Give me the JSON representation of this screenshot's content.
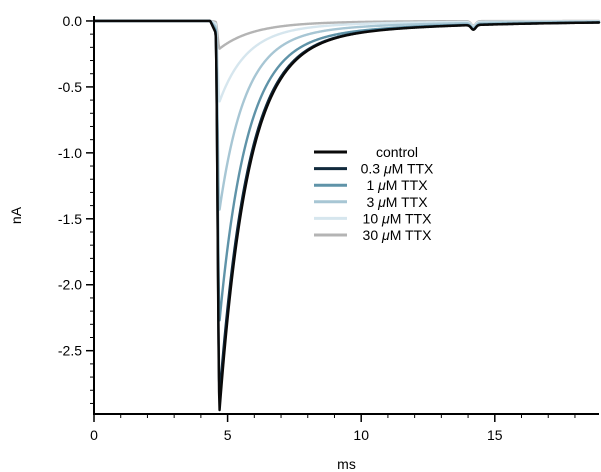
{
  "chart_data": {
    "type": "line",
    "xlabel": "ms",
    "ylabel": "nA",
    "xlim": [
      0,
      18.9
    ],
    "ylim": [
      -2.98,
      0.03
    ],
    "xticks": [
      0,
      5,
      10,
      15
    ],
    "xtick_labels": [
      "0",
      "5",
      "10",
      "15"
    ],
    "yticks": [
      0.0,
      -0.5,
      -1.0,
      -1.5,
      -2.0,
      -2.5
    ],
    "ytick_labels": [
      "0.0",
      "-0.5",
      "-1.0",
      "-1.5",
      "-2.0",
      "-2.5"
    ],
    "grid": false,
    "legend_position": "center-right",
    "peak_time_ms": 4.7,
    "series": [
      {
        "name": "control",
        "unit_prefix": "",
        "unit_suffix": "",
        "color": "#0a0a0a",
        "peak": -2.95,
        "tau_ms": 1.05,
        "slow_fraction": 0.07,
        "tau_slow_ms": 5.0
      },
      {
        "name": "0.3",
        "unit_prefix": "0.3 ",
        "unit_suffix": "M TTX",
        "color": "#112a3c",
        "peak": -2.84,
        "tau_ms": 1.05,
        "slow_fraction": 0.07,
        "tau_slow_ms": 5.0
      },
      {
        "name": "1",
        "unit_prefix": "1 ",
        "unit_suffix": "M TTX",
        "color": "#5f93a8",
        "peak": -2.27,
        "tau_ms": 1.0,
        "slow_fraction": 0.08,
        "tau_slow_ms": 5.0
      },
      {
        "name": "3",
        "unit_prefix": "3 ",
        "unit_suffix": "M TTX",
        "color": "#a7c6d4",
        "peak": -1.43,
        "tau_ms": 0.95,
        "slow_fraction": 0.09,
        "tau_slow_ms": 4.5
      },
      {
        "name": "10",
        "unit_prefix": "10 ",
        "unit_suffix": "M TTX",
        "color": "#d6e6ee",
        "peak": -0.61,
        "tau_ms": 1.0,
        "slow_fraction": 0.12,
        "tau_slow_ms": 4.0
      },
      {
        "name": "30",
        "unit_prefix": "30 ",
        "unit_suffix": "M TTX",
        "color": "#b4b4b4",
        "peak": -0.21,
        "tau_ms": 1.2,
        "slow_fraction": 0.15,
        "tau_slow_ms": 3.0
      }
    ],
    "legend_entries": [
      "control",
      "0.3 μM TTX",
      "1 μM TTX",
      "3 μM TTX",
      "10 μM TTX",
      "30 μM TTX"
    ]
  }
}
